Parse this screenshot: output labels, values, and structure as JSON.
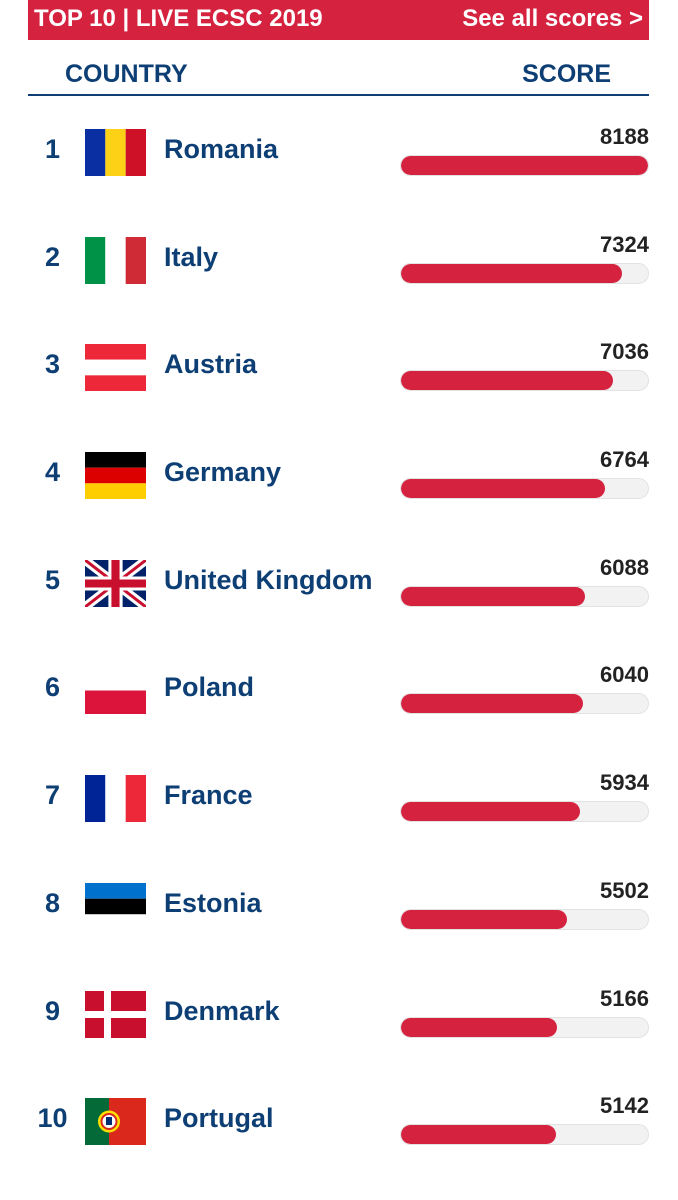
{
  "header": {
    "title": "TOP 10 | LIVE ECSC 2019",
    "see_all": "See all scores >"
  },
  "columns": {
    "country": "COUNTRY",
    "score": "SCORE"
  },
  "colors": {
    "accent": "#d4223f",
    "navy": "#0d3e74",
    "track": "#f2f2f2"
  },
  "max_score": 8188,
  "rows": [
    {
      "rank": "1",
      "country": "Romania",
      "score": 8188,
      "flag": "romania-flag-icon"
    },
    {
      "rank": "2",
      "country": "Italy",
      "score": 7324,
      "flag": "italy-flag-icon"
    },
    {
      "rank": "3",
      "country": "Austria",
      "score": 7036,
      "flag": "austria-flag-icon"
    },
    {
      "rank": "4",
      "country": "Germany",
      "score": 6764,
      "flag": "germany-flag-icon"
    },
    {
      "rank": "5",
      "country": "United Kingdom",
      "score": 6088,
      "flag": "uk-flag-icon"
    },
    {
      "rank": "6",
      "country": "Poland",
      "score": 6040,
      "flag": "poland-flag-icon"
    },
    {
      "rank": "7",
      "country": "France",
      "score": 5934,
      "flag": "france-flag-icon"
    },
    {
      "rank": "8",
      "country": "Estonia",
      "score": 5502,
      "flag": "estonia-flag-icon"
    },
    {
      "rank": "9",
      "country": "Denmark",
      "score": 5166,
      "flag": "denmark-flag-icon"
    },
    {
      "rank": "10",
      "country": "Portugal",
      "score": 5142,
      "flag": "portugal-flag-icon"
    }
  ]
}
